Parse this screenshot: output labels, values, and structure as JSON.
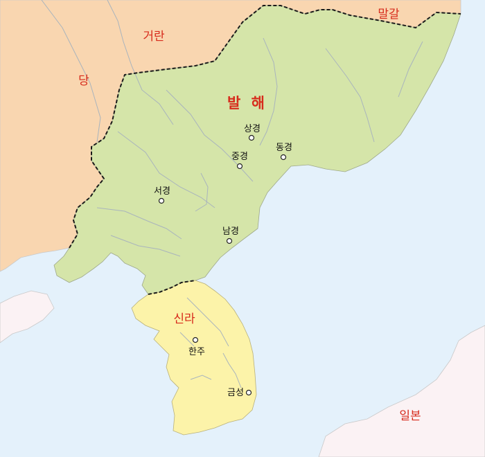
{
  "regions": {
    "georan": "거란",
    "dang": "당",
    "malgal": "말갈",
    "balhae": "발 해",
    "silla": "신라",
    "ilbon": "일본"
  },
  "cities": {
    "sanggyeong": "상경",
    "junggyeong": "중경",
    "donggyeong": "동경",
    "seogyeong": "서경",
    "namgyeong": "남경",
    "hanju": "한주",
    "geumseong": "금성"
  },
  "colors": {
    "sea": "#e4f1fb",
    "tang_land": "#f9d6b0",
    "balhae_land": "#d5e5a9",
    "silla_land": "#fcf3a9",
    "japan_land": "#fbf2f4",
    "label_red": "#d72b1c"
  }
}
